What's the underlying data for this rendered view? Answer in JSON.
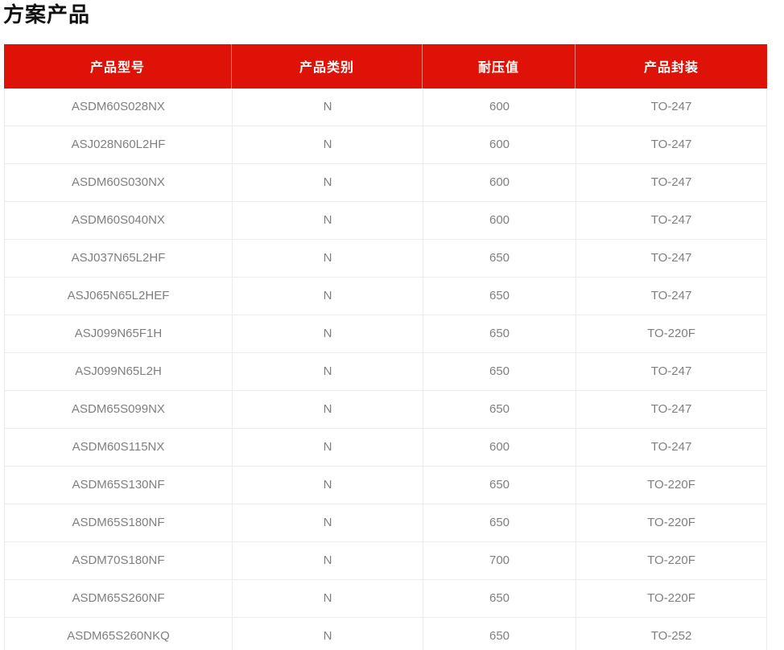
{
  "page": {
    "title": "方案产品"
  },
  "colors": {
    "header_bg": "#df1207",
    "header_text": "#ffffff",
    "body_text": "#7f7f7f",
    "row_border": "#ececec",
    "title_color": "#111111"
  },
  "table": {
    "columns": [
      "产品型号",
      "产品类别",
      "耐压值",
      "产品封装"
    ],
    "rows": [
      {
        "model": "ASDM60S028NX",
        "category": "N",
        "voltage": "600",
        "package": "TO-247"
      },
      {
        "model": "ASJ028N60L2HF",
        "category": "N",
        "voltage": "600",
        "package": "TO-247"
      },
      {
        "model": "ASDM60S030NX",
        "category": "N",
        "voltage": "600",
        "package": "TO-247"
      },
      {
        "model": "ASDM60S040NX",
        "category": "N",
        "voltage": "600",
        "package": "TO-247"
      },
      {
        "model": "ASJ037N65L2HF",
        "category": "N",
        "voltage": "650",
        "package": "TO-247"
      },
      {
        "model": "ASJ065N65L2HEF",
        "category": "N",
        "voltage": "650",
        "package": "TO-247"
      },
      {
        "model": "ASJ099N65F1H",
        "category": "N",
        "voltage": "650",
        "package": "TO-220F"
      },
      {
        "model": "ASJ099N65L2H",
        "category": "N",
        "voltage": "650",
        "package": "TO-247"
      },
      {
        "model": "ASDM65S099NX",
        "category": "N",
        "voltage": "650",
        "package": "TO-247"
      },
      {
        "model": "ASDM60S115NX",
        "category": "N",
        "voltage": "600",
        "package": "TO-247"
      },
      {
        "model": "ASDM65S130NF",
        "category": "N",
        "voltage": "650",
        "package": "TO-220F"
      },
      {
        "model": "ASDM65S180NF",
        "category": "N",
        "voltage": "650",
        "package": "TO-220F"
      },
      {
        "model": "ASDM70S180NF",
        "category": "N",
        "voltage": "700",
        "package": "TO-220F"
      },
      {
        "model": "ASDM65S260NF",
        "category": "N",
        "voltage": "650",
        "package": "TO-220F"
      },
      {
        "model": "ASDM65S260NKQ",
        "category": "N",
        "voltage": "650",
        "package": "TO-252"
      }
    ]
  }
}
